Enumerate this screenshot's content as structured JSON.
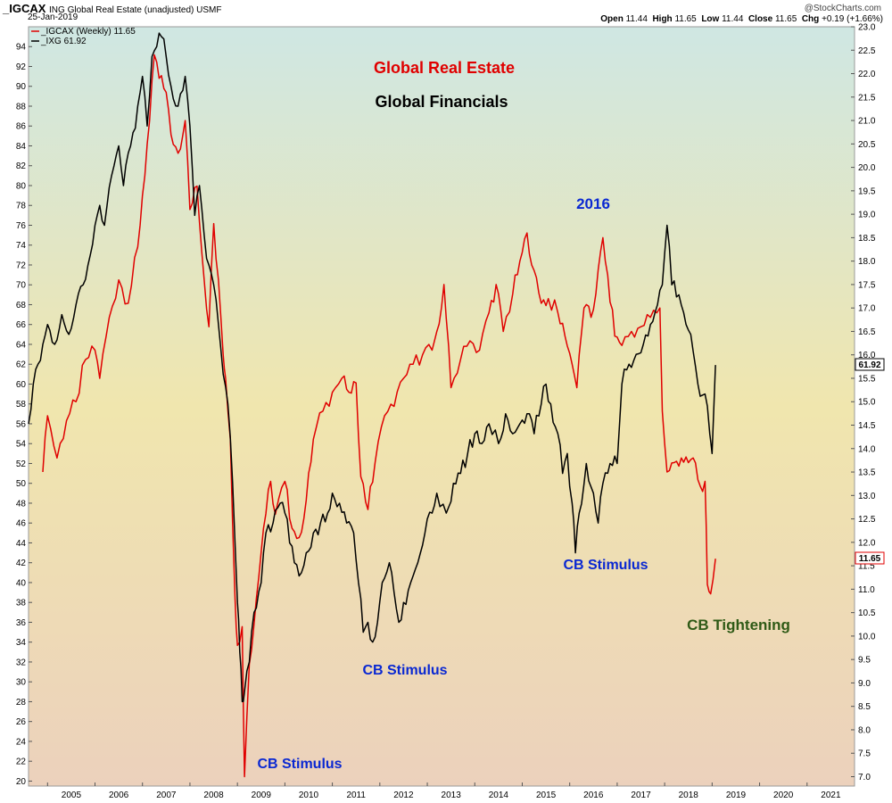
{
  "header": {
    "symbol": "_IGCAX",
    "description": "ING Global Real Estate (unadjusted) USMF",
    "date": "25-Jan-2019",
    "watermark": "@StockCharts.com",
    "ohlc_label": {
      "open_label": "Open",
      "open": "11.44",
      "high_label": "High",
      "high": "11.65",
      "low_label": "Low",
      "low": "11.44",
      "close_label": "Close",
      "close": "11.65",
      "chg_label": "Chg",
      "chg": "+0.19 (+1.66%)"
    }
  },
  "legend": {
    "items": [
      {
        "label": "_IGCAX (Weekly) 11.65",
        "color": "#e00000"
      },
      {
        "label": "_IXG 61.92",
        "color": "#000000"
      }
    ]
  },
  "annotations": [
    {
      "text": "Global Real Estate",
      "color": "#e00000"
    },
    {
      "text": "Global Financials",
      "color": "#000000"
    },
    {
      "text": "2016",
      "color": "#0a28d2"
    },
    {
      "text": "CB Stimulus",
      "color": "#0a28d2"
    },
    {
      "text": "CB Stimulus",
      "color": "#0a28d2"
    },
    {
      "text": "CB Stimulus",
      "color": "#0a28d2"
    },
    {
      "text": "CB Tightening",
      "color": "#2f5a16"
    }
  ],
  "last_values": {
    "ixg": "61.92",
    "igcax": "11.65"
  },
  "chart_data": {
    "type": "line",
    "x_axis": {
      "ticks": [
        "2005",
        "2006",
        "2007",
        "2008",
        "2009",
        "2010",
        "2011",
        "2012",
        "2013",
        "2014",
        "2015",
        "2016",
        "2017",
        "2018",
        "2019",
        "2020",
        "2021"
      ],
      "range": [
        2004.6,
        2022.0
      ]
    },
    "left_axis": {
      "range": [
        19.5,
        96
      ],
      "ticks": [
        20,
        22,
        24,
        26,
        28,
        30,
        32,
        34,
        36,
        38,
        40,
        42,
        44,
        46,
        48,
        50,
        52,
        54,
        56,
        58,
        60,
        62,
        64,
        66,
        68,
        70,
        72,
        74,
        76,
        78,
        80,
        82,
        84,
        86,
        88,
        90,
        92,
        94
      ]
    },
    "right_axis": {
      "range": [
        6.8,
        23.0
      ],
      "ticks": [
        "7.0",
        "7.5",
        "8.0",
        "8.5",
        "9.0",
        "9.5",
        "10.0",
        "10.5",
        "11.0",
        "11.5",
        "12.0",
        "12.5",
        "13.0",
        "13.5",
        "14.0",
        "14.5",
        "15.0",
        "15.5",
        "16.0",
        "16.5",
        "17.0",
        "17.5",
        "18.0",
        "18.5",
        "19.0",
        "19.5",
        "20.0",
        "20.5",
        "21.0",
        "21.5",
        "22.0",
        "22.5",
        "23.0"
      ]
    },
    "grid": false,
    "legend_position": "top-left",
    "series": [
      {
        "name": "_IGCAX (Weekly) 11.65",
        "axis": "right",
        "color": "#e00000",
        "points": [
          [
            2004.9,
            13.5
          ],
          [
            2005.0,
            14.7
          ],
          [
            2005.2,
            13.8
          ],
          [
            2005.4,
            14.6
          ],
          [
            2005.6,
            15.0
          ],
          [
            2005.8,
            15.9
          ],
          [
            2006.0,
            16.1
          ],
          [
            2006.1,
            15.5
          ],
          [
            2006.3,
            16.8
          ],
          [
            2006.5,
            17.6
          ],
          [
            2006.7,
            17.1
          ],
          [
            2006.9,
            18.3
          ],
          [
            2007.0,
            19.4
          ],
          [
            2007.15,
            21.0
          ],
          [
            2007.25,
            22.4
          ],
          [
            2007.35,
            21.9
          ],
          [
            2007.5,
            21.6
          ],
          [
            2007.6,
            20.7
          ],
          [
            2007.75,
            20.3
          ],
          [
            2007.9,
            21.0
          ],
          [
            2008.0,
            19.1
          ],
          [
            2008.15,
            19.6
          ],
          [
            2008.3,
            17.6
          ],
          [
            2008.4,
            16.6
          ],
          [
            2008.5,
            18.8
          ],
          [
            2008.6,
            17.6
          ],
          [
            2008.7,
            16.0
          ],
          [
            2008.75,
            15.5
          ],
          [
            2008.85,
            14.2
          ],
          [
            2008.95,
            10.8
          ],
          [
            2009.0,
            9.8
          ],
          [
            2009.1,
            10.2
          ],
          [
            2009.15,
            7.0
          ],
          [
            2009.25,
            9.4
          ],
          [
            2009.4,
            10.8
          ],
          [
            2009.55,
            12.3
          ],
          [
            2009.7,
            13.3
          ],
          [
            2009.8,
            12.6
          ],
          [
            2010.0,
            13.3
          ],
          [
            2010.15,
            12.3
          ],
          [
            2010.3,
            12.1
          ],
          [
            2010.45,
            12.9
          ],
          [
            2010.6,
            14.2
          ],
          [
            2010.8,
            14.8
          ],
          [
            2011.0,
            15.2
          ],
          [
            2011.2,
            15.5
          ],
          [
            2011.35,
            15.2
          ],
          [
            2011.5,
            15.4
          ],
          [
            2011.6,
            13.4
          ],
          [
            2011.75,
            12.7
          ],
          [
            2011.9,
            13.7
          ],
          [
            2012.1,
            14.7
          ],
          [
            2012.3,
            14.9
          ],
          [
            2012.5,
            15.5
          ],
          [
            2012.7,
            15.8
          ],
          [
            2012.9,
            16.0
          ],
          [
            2013.1,
            16.1
          ],
          [
            2013.2,
            16.5
          ],
          [
            2013.35,
            17.5
          ],
          [
            2013.5,
            15.3
          ],
          [
            2013.7,
            15.9
          ],
          [
            2013.9,
            16.3
          ],
          [
            2014.1,
            16.1
          ],
          [
            2014.3,
            16.9
          ],
          [
            2014.45,
            17.5
          ],
          [
            2014.6,
            16.5
          ],
          [
            2014.8,
            17.3
          ],
          [
            2014.95,
            18.0
          ],
          [
            2015.1,
            18.6
          ],
          [
            2015.25,
            17.8
          ],
          [
            2015.4,
            17.1
          ],
          [
            2015.55,
            17.2
          ],
          [
            2015.75,
            16.9
          ],
          [
            2015.9,
            16.4
          ],
          [
            2016.05,
            15.8
          ],
          [
            2016.15,
            15.3
          ],
          [
            2016.3,
            17.0
          ],
          [
            2016.45,
            16.8
          ],
          [
            2016.55,
            17.3
          ],
          [
            2016.7,
            18.5
          ],
          [
            2016.8,
            17.7
          ],
          [
            2016.95,
            16.4
          ],
          [
            2017.1,
            16.2
          ],
          [
            2017.3,
            16.5
          ],
          [
            2017.5,
            16.6
          ],
          [
            2017.7,
            16.8
          ],
          [
            2017.9,
            17.0
          ],
          [
            2017.95,
            14.8
          ],
          [
            2018.05,
            13.5
          ],
          [
            2018.2,
            13.7
          ],
          [
            2018.35,
            13.8
          ],
          [
            2018.5,
            13.7
          ],
          [
            2018.6,
            13.8
          ],
          [
            2018.75,
            13.2
          ],
          [
            2018.85,
            13.3
          ],
          [
            2018.9,
            11.1
          ],
          [
            2018.97,
            10.9
          ],
          [
            2019.07,
            11.65
          ]
        ]
      },
      {
        "name": "_IXG 61.92",
        "axis": "left",
        "color": "#000000",
        "points": [
          [
            2004.6,
            56
          ],
          [
            2004.7,
            60
          ],
          [
            2004.8,
            62
          ],
          [
            2004.9,
            64
          ],
          [
            2005.0,
            66
          ],
          [
            2005.15,
            64
          ],
          [
            2005.3,
            67
          ],
          [
            2005.45,
            65
          ],
          [
            2005.6,
            68
          ],
          [
            2005.75,
            70
          ],
          [
            2005.9,
            73
          ],
          [
            2006.0,
            76
          ],
          [
            2006.1,
            78
          ],
          [
            2006.2,
            76
          ],
          [
            2006.35,
            81
          ],
          [
            2006.5,
            84
          ],
          [
            2006.6,
            80
          ],
          [
            2006.75,
            84
          ],
          [
            2006.9,
            88
          ],
          [
            2007.0,
            91
          ],
          [
            2007.1,
            86
          ],
          [
            2007.2,
            93
          ],
          [
            2007.3,
            94
          ],
          [
            2007.4,
            95
          ],
          [
            2007.5,
            93
          ],
          [
            2007.6,
            90
          ],
          [
            2007.75,
            88
          ],
          [
            2007.9,
            91
          ],
          [
            2008.0,
            86
          ],
          [
            2008.1,
            77
          ],
          [
            2008.2,
            80
          ],
          [
            2008.3,
            75
          ],
          [
            2008.4,
            72
          ],
          [
            2008.5,
            70
          ],
          [
            2008.6,
            66
          ],
          [
            2008.7,
            61
          ],
          [
            2008.8,
            58
          ],
          [
            2008.9,
            50
          ],
          [
            2009.0,
            38
          ],
          [
            2009.05,
            33
          ],
          [
            2009.1,
            28
          ],
          [
            2009.15,
            29
          ],
          [
            2009.25,
            32
          ],
          [
            2009.35,
            37
          ],
          [
            2009.5,
            40
          ],
          [
            2009.6,
            45
          ],
          [
            2009.75,
            46
          ],
          [
            2009.9,
            48
          ],
          [
            2010.0,
            47
          ],
          [
            2010.1,
            44
          ],
          [
            2010.2,
            42
          ],
          [
            2010.35,
            41
          ],
          [
            2010.45,
            43
          ],
          [
            2010.6,
            45
          ],
          [
            2010.75,
            46
          ],
          [
            2010.9,
            47
          ],
          [
            2011.0,
            49
          ],
          [
            2011.15,
            48
          ],
          [
            2011.3,
            46
          ],
          [
            2011.45,
            45
          ],
          [
            2011.55,
            40
          ],
          [
            2011.65,
            35
          ],
          [
            2011.75,
            36
          ],
          [
            2011.85,
            34
          ],
          [
            2011.95,
            36
          ],
          [
            2012.05,
            40
          ],
          [
            2012.2,
            42
          ],
          [
            2012.3,
            39
          ],
          [
            2012.4,
            36
          ],
          [
            2012.5,
            38
          ],
          [
            2012.65,
            40
          ],
          [
            2012.8,
            42
          ],
          [
            2012.95,
            45
          ],
          [
            2013.1,
            47
          ],
          [
            2013.2,
            49
          ],
          [
            2013.4,
            47
          ],
          [
            2013.55,
            50
          ],
          [
            2013.7,
            51
          ],
          [
            2013.85,
            53
          ],
          [
            2014.0,
            55
          ],
          [
            2014.15,
            54
          ],
          [
            2014.3,
            56
          ],
          [
            2014.5,
            54
          ],
          [
            2014.65,
            57
          ],
          [
            2014.8,
            55
          ],
          [
            2014.95,
            56
          ],
          [
            2015.1,
            57
          ],
          [
            2015.25,
            55
          ],
          [
            2015.4,
            58
          ],
          [
            2015.5,
            60
          ],
          [
            2015.6,
            58
          ],
          [
            2015.75,
            55
          ],
          [
            2015.85,
            51
          ],
          [
            2015.95,
            53
          ],
          [
            2016.05,
            48
          ],
          [
            2016.12,
            43
          ],
          [
            2016.2,
            47
          ],
          [
            2016.35,
            52
          ],
          [
            2016.5,
            49
          ],
          [
            2016.6,
            46
          ],
          [
            2016.7,
            50
          ],
          [
            2016.85,
            52
          ],
          [
            2017.0,
            52
          ],
          [
            2017.1,
            60
          ],
          [
            2017.25,
            62
          ],
          [
            2017.4,
            63
          ],
          [
            2017.55,
            64
          ],
          [
            2017.7,
            66
          ],
          [
            2017.85,
            68
          ],
          [
            2017.95,
            70
          ],
          [
            2018.05,
            76
          ],
          [
            2018.15,
            70
          ],
          [
            2018.3,
            69
          ],
          [
            2018.45,
            66
          ],
          [
            2018.55,
            65
          ],
          [
            2018.7,
            60
          ],
          [
            2018.85,
            59
          ],
          [
            2018.95,
            55
          ],
          [
            2019.0,
            53
          ],
          [
            2019.07,
            61.92
          ]
        ]
      }
    ]
  }
}
